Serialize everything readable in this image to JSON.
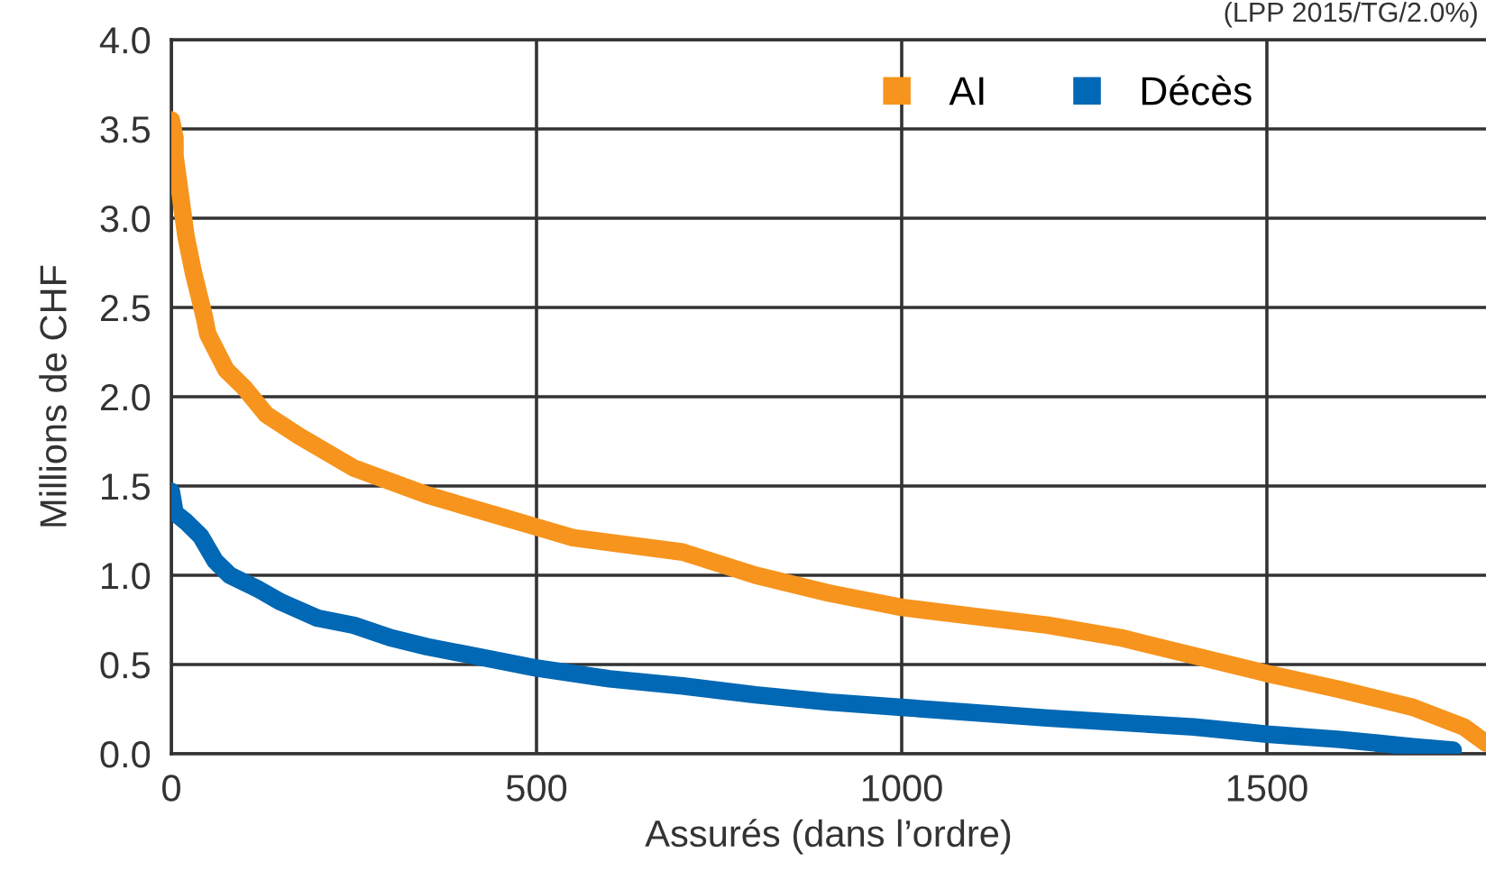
{
  "chart_data": {
    "type": "line",
    "xlabel": "Assurés (dans l’ordre)",
    "ylabel": "Millions de CHF",
    "annotations": [
      "(LPP 2015/TG/2.0%)"
    ],
    "xlim": [
      0,
      1800
    ],
    "xticks": [
      0,
      500,
      1000,
      1500
    ],
    "ylim": [
      0,
      4.0
    ],
    "yticks": [
      {
        "value": 0,
        "label": "0.0"
      },
      {
        "value": 0.5,
        "label": "0.5"
      },
      {
        "value": 1.0,
        "label": "1.0"
      },
      {
        "value": 1.5,
        "label": "1.5"
      },
      {
        "value": 2.0,
        "label": "2.0"
      },
      {
        "value": 2.5,
        "label": "2.5"
      },
      {
        "value": 3.0,
        "label": "3.0"
      },
      {
        "value": 3.5,
        "label": "3.5"
      },
      {
        "value": 4.0,
        "label": "4.0"
      }
    ],
    "grid": true,
    "legend": "top right",
    "line_style": "solid",
    "series": [
      {
        "name": "AI",
        "color": "#f7941d",
        "x": [
          0,
          5,
          5,
          15,
          20,
          30,
          45,
          50,
          75,
          100,
          130,
          175,
          250,
          350,
          450,
          500,
          550,
          700,
          800,
          900,
          1000,
          1100,
          1200,
          1300,
          1400,
          1500,
          1600,
          1700,
          1770,
          1800
        ],
        "values": [
          3.55,
          3.45,
          3.35,
          3.05,
          2.9,
          2.7,
          2.45,
          2.35,
          2.15,
          2.05,
          1.9,
          1.78,
          1.6,
          1.45,
          1.33,
          1.27,
          1.21,
          1.13,
          1.0,
          0.9,
          0.82,
          0.77,
          0.72,
          0.65,
          0.55,
          0.45,
          0.36,
          0.26,
          0.15,
          0.06
        ]
      },
      {
        "name": "Décès",
        "color": "#0068b4",
        "x": [
          0,
          5,
          20,
          40,
          60,
          80,
          120,
          150,
          200,
          250,
          300,
          350,
          450,
          500,
          600,
          700,
          800,
          900,
          1000,
          1200,
          1400,
          1500,
          1600,
          1700,
          1755
        ],
        "values": [
          1.47,
          1.35,
          1.3,
          1.22,
          1.08,
          1.0,
          0.92,
          0.85,
          0.76,
          0.72,
          0.65,
          0.6,
          0.52,
          0.48,
          0.42,
          0.38,
          0.33,
          0.29,
          0.26,
          0.2,
          0.15,
          0.11,
          0.08,
          0.04,
          0.02
        ]
      }
    ]
  }
}
